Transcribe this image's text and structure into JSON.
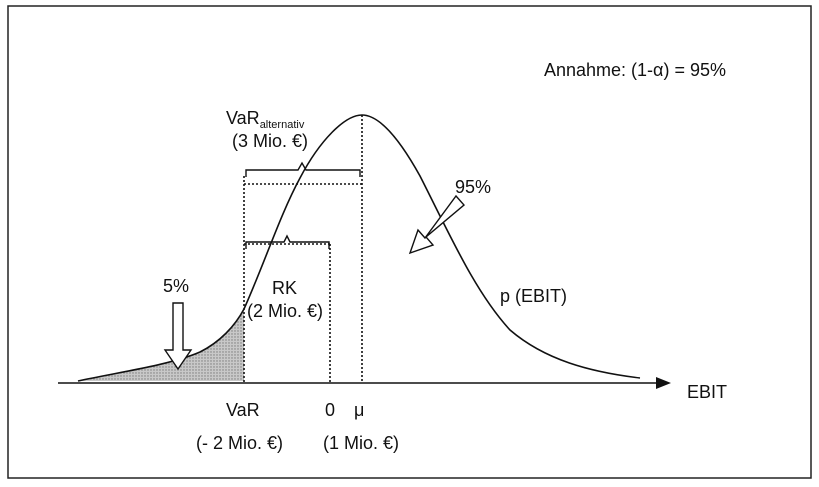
{
  "assumption": "Annahme: (1-α) = 95%",
  "labels": {
    "var_alt_main": "VaR",
    "var_alt_sub": "alternativ",
    "var_alt_amount": "(3 Mio. €)",
    "rk": "RK",
    "rk_amount": "(2 Mio. €)",
    "five_pct": "5%",
    "ninety_five_pct": "95%",
    "p_ebit": "p (EBIT)",
    "ebit_axis": "EBIT",
    "var": "VaR",
    "var_amount": "(- 2 Mio. €)",
    "zero": "0",
    "mu": "μ",
    "mu_amount": "(1 Mio. €)"
  },
  "colors": {
    "line": "#111111",
    "tail_fill": "#bdbdbd",
    "frame": "#222222",
    "arrow_fill": "#ffffff"
  }
}
